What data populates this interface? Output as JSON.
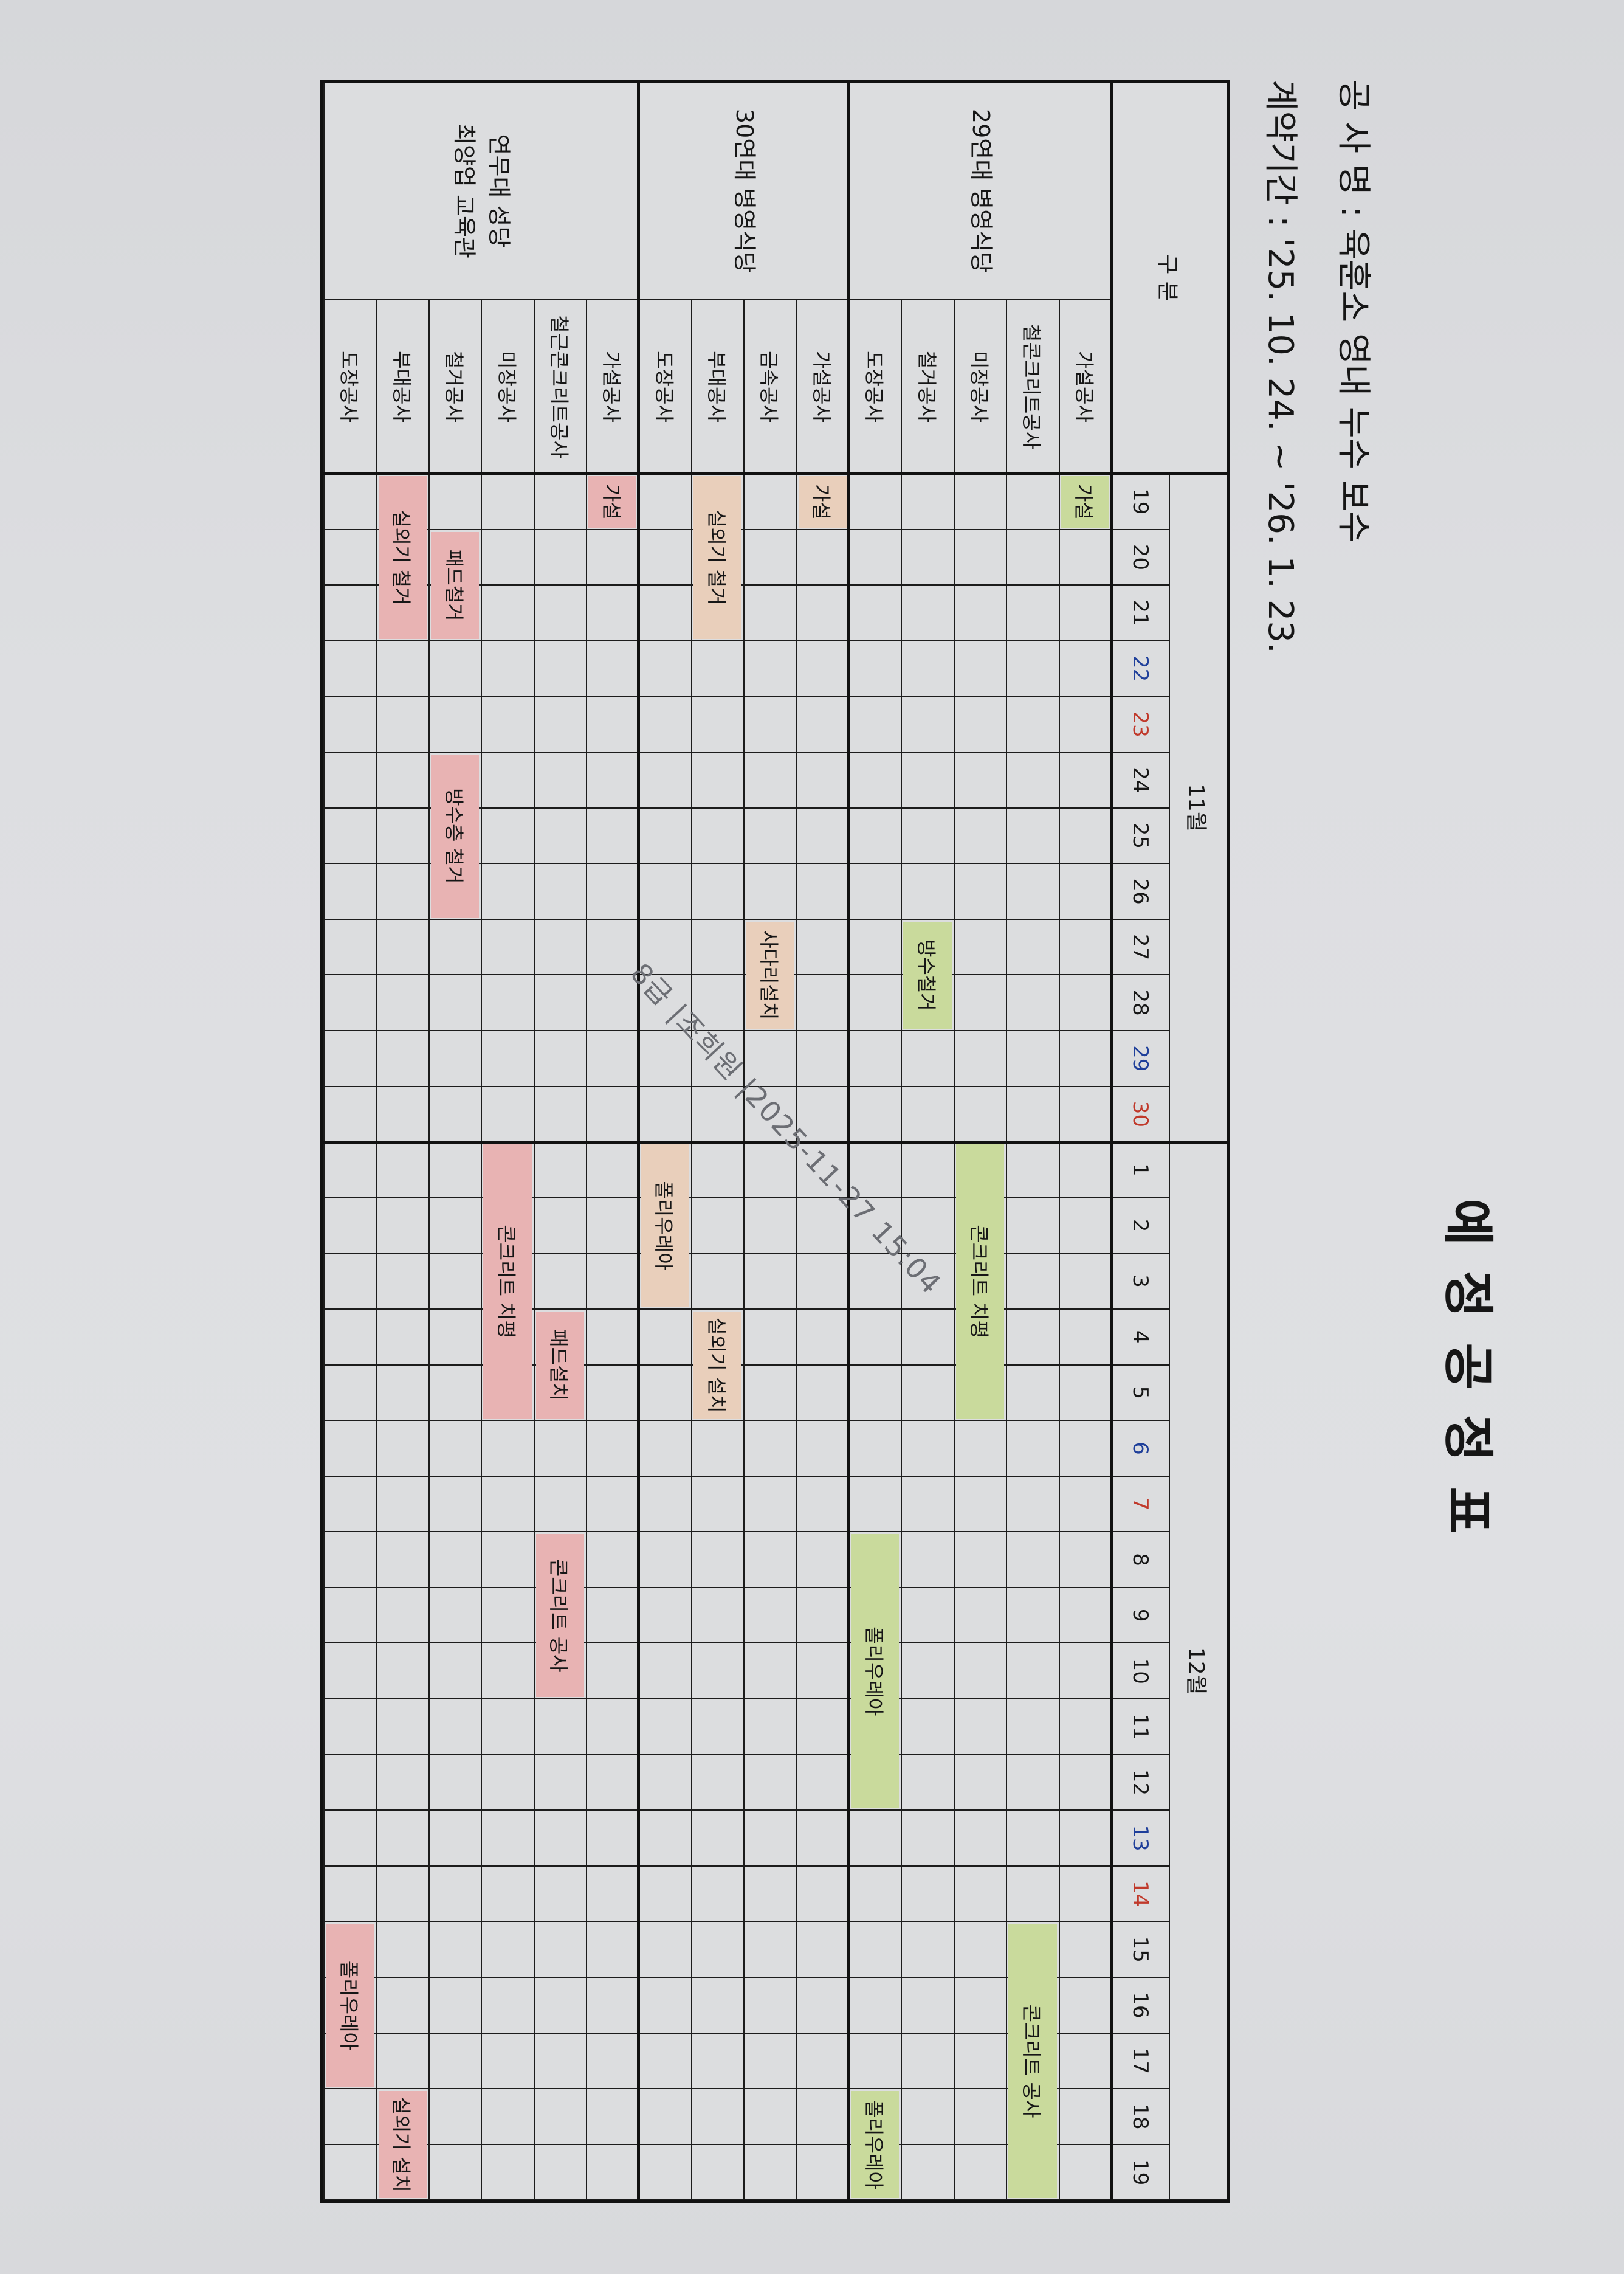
{
  "title": "예 정 공 정 표",
  "project_name": "공 사 명 : 육훈소 영내 누수 보수",
  "contract_period": "계약기간 : '25. 10. 24. ~ '26. 1. 23.",
  "header": {
    "category": "구 분",
    "months": [
      {
        "label": "11월",
        "month": 11,
        "days": [
          19,
          20,
          21,
          22,
          23,
          24,
          25,
          26,
          27,
          28,
          29,
          30
        ]
      },
      {
        "label": "12월",
        "month": 12,
        "days": [
          1,
          2,
          3,
          4,
          5,
          6,
          7,
          8,
          9,
          10,
          11,
          12,
          13,
          14,
          15,
          16,
          17,
          18,
          19
        ]
      }
    ],
    "saturdays": [
      "11/22",
      "11/29",
      "12/6",
      "12/13"
    ],
    "sundays": [
      "11/23",
      "11/30",
      "12/7",
      "12/14"
    ],
    "saturday_color": "#1f3f9a",
    "sunday_color": "#c0392b"
  },
  "groups": [
    {
      "name": [
        "29연대 병영식당"
      ],
      "color": "#c9da9c",
      "items": [
        {
          "name": "가설공사",
          "tasks": [
            {
              "label": "가설",
              "start": "11/19",
              "end": "11/19"
            }
          ]
        },
        {
          "name": "철콘크리트공사",
          "tasks": [
            {
              "label": "콘크리트 공사",
              "start": "12/15",
              "end": "12/19"
            }
          ]
        },
        {
          "name": "미장공사",
          "tasks": [
            {
              "label": "콘크리트 치평",
              "start": "12/1",
              "end": "12/5"
            }
          ]
        },
        {
          "name": "철거공사",
          "tasks": [
            {
              "label": "방수철거",
              "start": "11/27",
              "end": "11/28"
            }
          ]
        },
        {
          "name": "도장공사",
          "tasks": [
            {
              "label": "폴리우레아",
              "start": "12/8",
              "end": "12/12"
            },
            {
              "label": "폴리우레아",
              "start": "12/18",
              "end": "12/19"
            }
          ]
        }
      ]
    },
    {
      "name": [
        "30연대 병영식당"
      ],
      "color": "#e9cfbb",
      "items": [
        {
          "name": "가설공사",
          "tasks": [
            {
              "label": "가설",
              "start": "11/19",
              "end": "11/19"
            }
          ]
        },
        {
          "name": "금속공사",
          "tasks": [
            {
              "label": "사다리설치",
              "start": "11/27",
              "end": "11/28"
            }
          ]
        },
        {
          "name": "부대공사",
          "tasks": [
            {
              "label": "실외기 철거",
              "start": "11/19",
              "end": "11/21"
            },
            {
              "label": "실외기 설치",
              "start": "12/4",
              "end": "12/5"
            }
          ]
        },
        {
          "name": "도장공사",
          "tasks": [
            {
              "label": "폴리우레아",
              "start": "12/1",
              "end": "12/3"
            }
          ]
        }
      ]
    },
    {
      "name": [
        "연무대 성당",
        "최양업 교육관"
      ],
      "color": "#e8b3b3",
      "items": [
        {
          "name": "가설공사",
          "tasks": [
            {
              "label": "가설",
              "start": "11/19",
              "end": "11/19"
            }
          ]
        },
        {
          "name": "철근콘크리트공사",
          "tasks": [
            {
              "label": "패드설치",
              "start": "12/4",
              "end": "12/5"
            },
            {
              "label": "콘크리트 공사",
              "start": "12/8",
              "end": "12/10"
            }
          ]
        },
        {
          "name": "미장공사",
          "tasks": [
            {
              "label": "콘크리트 치평",
              "start": "12/1",
              "end": "12/5"
            }
          ]
        },
        {
          "name": "철거공사",
          "tasks": [
            {
              "label": "패드철거",
              "start": "11/20",
              "end": "11/21"
            },
            {
              "label": "방수층 철거",
              "start": "11/24",
              "end": "11/26"
            }
          ]
        },
        {
          "name": "부대공사",
          "tasks": [
            {
              "label": "실외기 철거",
              "start": "11/19",
              "end": "11/21"
            },
            {
              "label": "실외기 설치",
              "start": "12/18",
              "end": "12/19"
            }
          ]
        },
        {
          "name": "도장공사",
          "tasks": [
            {
              "label": "폴리우레아",
              "start": "12/15",
              "end": "12/17"
            }
          ]
        }
      ]
    }
  ],
  "stamp": "8급 |조희원 |2025-11-27 15:04"
}
